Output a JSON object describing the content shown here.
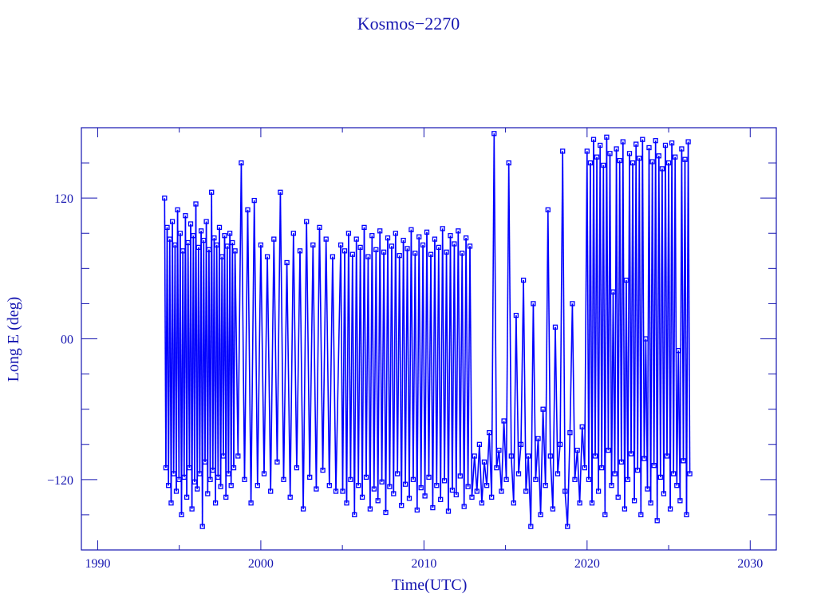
{
  "chart_data": {
    "type": "line",
    "title": "Kosmos−2270",
    "xlabel": "Time(UTC)",
    "ylabel": "Long E (deg)",
    "xlim": [
      1989,
      2031.6
    ],
    "ylim": [
      -180,
      180
    ],
    "xticks": [
      1990,
      2000,
      2010,
      2020,
      2030
    ],
    "xtick_labels": [
      "1990",
      "2000",
      "2010",
      "2020",
      "2030"
    ],
    "yticks": [
      -120,
      0,
      120
    ],
    "ytick_labels": [
      "−120",
      "00",
      "120"
    ],
    "grid": false,
    "markers": "square",
    "colors": {
      "series": "#0000ff",
      "axes": "#1515b0"
    },
    "points": [
      [
        1994.1,
        120
      ],
      [
        1994.18,
        -110
      ],
      [
        1994.26,
        95
      ],
      [
        1994.34,
        -125
      ],
      [
        1994.42,
        85
      ],
      [
        1994.5,
        -140
      ],
      [
        1994.58,
        100
      ],
      [
        1994.66,
        -115
      ],
      [
        1994.74,
        80
      ],
      [
        1994.82,
        -130
      ],
      [
        1994.9,
        110
      ],
      [
        1994.98,
        -120
      ],
      [
        1995.06,
        90
      ],
      [
        1995.14,
        -150
      ],
      [
        1995.22,
        75
      ],
      [
        1995.3,
        -118
      ],
      [
        1995.38,
        105
      ],
      [
        1995.46,
        -135
      ],
      [
        1995.54,
        82
      ],
      [
        1995.62,
        -110
      ],
      [
        1995.7,
        98
      ],
      [
        1995.78,
        -145
      ],
      [
        1995.86,
        88
      ],
      [
        1995.94,
        -122
      ],
      [
        1996.02,
        115
      ],
      [
        1996.1,
        -128
      ],
      [
        1996.18,
        78
      ],
      [
        1996.26,
        -115
      ],
      [
        1996.34,
        92
      ],
      [
        1996.42,
        -160
      ],
      [
        1996.5,
        84
      ],
      [
        1996.58,
        -105
      ],
      [
        1996.66,
        100
      ],
      [
        1996.74,
        -132
      ],
      [
        1996.82,
        76
      ],
      [
        1996.9,
        -120
      ],
      [
        1996.98,
        125
      ],
      [
        1997.06,
        -112
      ],
      [
        1997.14,
        86
      ],
      [
        1997.22,
        -140
      ],
      [
        1997.3,
        80
      ],
      [
        1997.38,
        -118
      ],
      [
        1997.46,
        95
      ],
      [
        1997.54,
        -126
      ],
      [
        1997.62,
        70
      ],
      [
        1997.7,
        -100
      ],
      [
        1997.78,
        88
      ],
      [
        1997.86,
        -135
      ],
      [
        1997.94,
        79
      ],
      [
        1998.02,
        -115
      ],
      [
        1998.1,
        90
      ],
      [
        1998.18,
        -125
      ],
      [
        1998.26,
        82
      ],
      [
        1998.34,
        -110
      ],
      [
        1998.42,
        75
      ],
      [
        1998.6,
        -100
      ],
      [
        1998.8,
        150
      ],
      [
        1999.0,
        -120
      ],
      [
        1999.2,
        110
      ],
      [
        1999.4,
        -140
      ],
      [
        1999.6,
        118
      ],
      [
        1999.8,
        -125
      ],
      [
        2000.0,
        80
      ],
      [
        2000.2,
        -115
      ],
      [
        2000.4,
        70
      ],
      [
        2000.6,
        -130
      ],
      [
        2000.8,
        85
      ],
      [
        2001.0,
        -105
      ],
      [
        2001.2,
        125
      ],
      [
        2001.4,
        -120
      ],
      [
        2001.6,
        65
      ],
      [
        2001.8,
        -135
      ],
      [
        2002.0,
        90
      ],
      [
        2002.2,
        -110
      ],
      [
        2002.4,
        75
      ],
      [
        2002.6,
        -145
      ],
      [
        2002.8,
        100
      ],
      [
        2003.0,
        -118
      ],
      [
        2003.2,
        80
      ],
      [
        2003.4,
        -128
      ],
      [
        2003.6,
        95
      ],
      [
        2003.8,
        -112
      ],
      [
        2004.0,
        85
      ],
      [
        2004.2,
        -125
      ],
      [
        2004.4,
        70
      ],
      [
        2004.6,
        -130
      ],
      [
        2004.9,
        80
      ],
      [
        2005.02,
        -130
      ],
      [
        2005.14,
        75
      ],
      [
        2005.26,
        -140
      ],
      [
        2005.38,
        90
      ],
      [
        2005.5,
        -120
      ],
      [
        2005.62,
        72
      ],
      [
        2005.74,
        -150
      ],
      [
        2005.86,
        85
      ],
      [
        2005.98,
        -125
      ],
      [
        2006.1,
        78
      ],
      [
        2006.22,
        -135
      ],
      [
        2006.34,
        95
      ],
      [
        2006.46,
        -118
      ],
      [
        2006.58,
        70
      ],
      [
        2006.7,
        -145
      ],
      [
        2006.82,
        88
      ],
      [
        2006.94,
        -128
      ],
      [
        2007.06,
        76
      ],
      [
        2007.18,
        -138
      ],
      [
        2007.3,
        92
      ],
      [
        2007.42,
        -122
      ],
      [
        2007.54,
        74
      ],
      [
        2007.66,
        -148
      ],
      [
        2007.78,
        86
      ],
      [
        2007.9,
        -126
      ],
      [
        2008.02,
        79
      ],
      [
        2008.14,
        -132
      ],
      [
        2008.26,
        90
      ],
      [
        2008.38,
        -115
      ],
      [
        2008.5,
        71
      ],
      [
        2008.62,
        -142
      ],
      [
        2008.74,
        84
      ],
      [
        2008.86,
        -124
      ],
      [
        2008.98,
        77
      ],
      [
        2009.1,
        -136
      ],
      [
        2009.22,
        93
      ],
      [
        2009.34,
        -120
      ],
      [
        2009.46,
        73
      ],
      [
        2009.58,
        -146
      ],
      [
        2009.7,
        87
      ],
      [
        2009.82,
        -127
      ],
      [
        2009.94,
        80
      ],
      [
        2010.06,
        -134
      ],
      [
        2010.18,
        91
      ],
      [
        2010.3,
        -118
      ],
      [
        2010.42,
        72
      ],
      [
        2010.54,
        -144
      ],
      [
        2010.66,
        85
      ],
      [
        2010.78,
        -125
      ],
      [
        2010.9,
        78
      ],
      [
        2011.02,
        -137
      ],
      [
        2011.14,
        94
      ],
      [
        2011.26,
        -121
      ],
      [
        2011.38,
        74
      ],
      [
        2011.5,
        -147
      ],
      [
        2011.62,
        88
      ],
      [
        2011.74,
        -129
      ],
      [
        2011.86,
        81
      ],
      [
        2011.98,
        -133
      ],
      [
        2012.1,
        92
      ],
      [
        2012.22,
        -117
      ],
      [
        2012.34,
        73
      ],
      [
        2012.46,
        -143
      ],
      [
        2012.58,
        86
      ],
      [
        2012.7,
        -126
      ],
      [
        2012.82,
        79
      ],
      [
        2012.94,
        -135
      ],
      [
        2013.1,
        -100
      ],
      [
        2013.25,
        -130
      ],
      [
        2013.4,
        -90
      ],
      [
        2013.55,
        -140
      ],
      [
        2013.7,
        -105
      ],
      [
        2013.85,
        -125
      ],
      [
        2014.0,
        -80
      ],
      [
        2014.15,
        -135
      ],
      [
        2014.3,
        175
      ],
      [
        2014.45,
        -110
      ],
      [
        2014.6,
        -95
      ],
      [
        2014.75,
        -130
      ],
      [
        2014.9,
        -70
      ],
      [
        2015.05,
        -120
      ],
      [
        2015.2,
        150
      ],
      [
        2015.35,
        -100
      ],
      [
        2015.5,
        -140
      ],
      [
        2015.65,
        20
      ],
      [
        2015.8,
        -115
      ],
      [
        2015.95,
        -90
      ],
      [
        2016.1,
        50
      ],
      [
        2016.25,
        -130
      ],
      [
        2016.4,
        -100
      ],
      [
        2016.55,
        -160
      ],
      [
        2016.7,
        30
      ],
      [
        2016.85,
        -120
      ],
      [
        2017.0,
        -85
      ],
      [
        2017.15,
        -150
      ],
      [
        2017.3,
        -60
      ],
      [
        2017.45,
        -125
      ],
      [
        2017.6,
        110
      ],
      [
        2017.75,
        -100
      ],
      [
        2017.9,
        -145
      ],
      [
        2018.05,
        10
      ],
      [
        2018.2,
        -115
      ],
      [
        2018.35,
        -90
      ],
      [
        2018.5,
        160
      ],
      [
        2018.65,
        -130
      ],
      [
        2018.8,
        -160
      ],
      [
        2018.95,
        -80
      ],
      [
        2019.1,
        30
      ],
      [
        2019.25,
        -120
      ],
      [
        2019.4,
        -95
      ],
      [
        2019.55,
        -140
      ],
      [
        2019.7,
        -75
      ],
      [
        2019.85,
        -110
      ],
      [
        2020.0,
        160
      ],
      [
        2020.1,
        -120
      ],
      [
        2020.2,
        150
      ],
      [
        2020.3,
        -140
      ],
      [
        2020.4,
        170
      ],
      [
        2020.5,
        -100
      ],
      [
        2020.6,
        155
      ],
      [
        2020.7,
        -130
      ],
      [
        2020.8,
        165
      ],
      [
        2020.9,
        -110
      ],
      [
        2021.0,
        148
      ],
      [
        2021.1,
        -150
      ],
      [
        2021.2,
        172
      ],
      [
        2021.3,
        -95
      ],
      [
        2021.4,
        158
      ],
      [
        2021.5,
        -125
      ],
      [
        2021.6,
        40
      ],
      [
        2021.7,
        -115
      ],
      [
        2021.8,
        162
      ],
      [
        2021.9,
        -135
      ],
      [
        2022.0,
        152
      ],
      [
        2022.1,
        -105
      ],
      [
        2022.2,
        168
      ],
      [
        2022.3,
        -145
      ],
      [
        2022.4,
        50
      ],
      [
        2022.5,
        -120
      ],
      [
        2022.6,
        158
      ],
      [
        2022.7,
        -98
      ],
      [
        2022.8,
        150
      ],
      [
        2022.9,
        -138
      ],
      [
        2023.0,
        166
      ],
      [
        2023.1,
        -112
      ],
      [
        2023.2,
        154
      ],
      [
        2023.3,
        -150
      ],
      [
        2023.4,
        170
      ],
      [
        2023.5,
        -102
      ],
      [
        2023.6,
        0
      ],
      [
        2023.7,
        -128
      ],
      [
        2023.8,
        163
      ],
      [
        2023.9,
        -140
      ],
      [
        2024.0,
        151
      ],
      [
        2024.1,
        -108
      ],
      [
        2024.2,
        169
      ],
      [
        2024.3,
        -155
      ],
      [
        2024.4,
        156
      ],
      [
        2024.5,
        -118
      ],
      [
        2024.6,
        145
      ],
      [
        2024.7,
        -132
      ],
      [
        2024.8,
        165
      ],
      [
        2024.9,
        -100
      ],
      [
        2025.0,
        150
      ],
      [
        2025.1,
        -145
      ],
      [
        2025.2,
        167
      ],
      [
        2025.3,
        -115
      ],
      [
        2025.4,
        155
      ],
      [
        2025.5,
        -125
      ],
      [
        2025.6,
        -10
      ],
      [
        2025.7,
        -138
      ],
      [
        2025.8,
        162
      ],
      [
        2025.9,
        -104
      ],
      [
        2026.0,
        153
      ],
      [
        2026.1,
        -150
      ],
      [
        2026.2,
        168
      ],
      [
        2026.3,
        -115
      ]
    ]
  }
}
